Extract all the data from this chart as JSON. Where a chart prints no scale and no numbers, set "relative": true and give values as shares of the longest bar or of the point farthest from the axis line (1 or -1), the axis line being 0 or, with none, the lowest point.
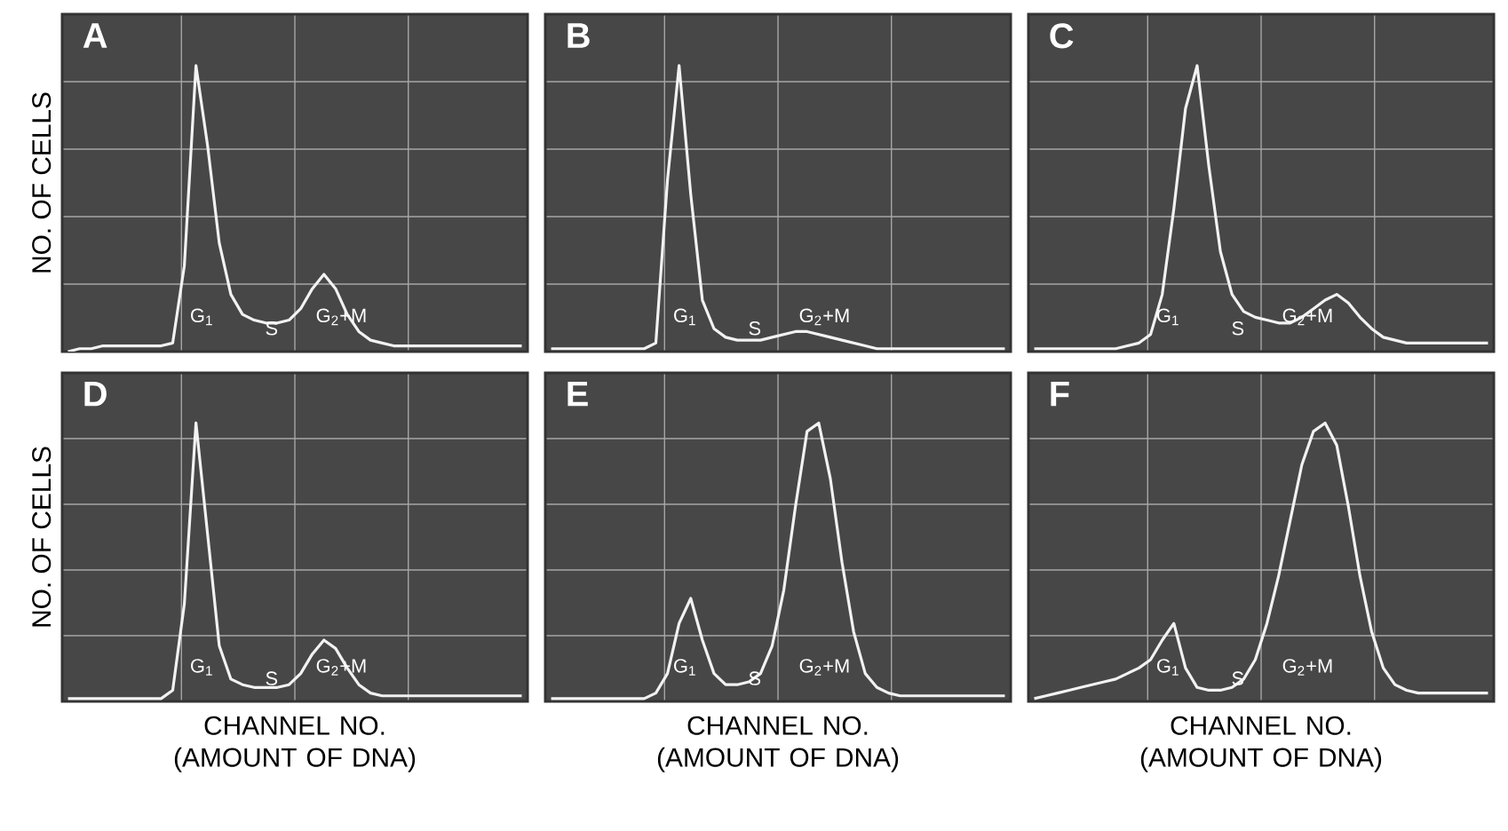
{
  "chart_data": [
    {
      "type": "line",
      "title": "A",
      "ylabel": "NO. OF CELLS",
      "relative": true,
      "grid": true,
      "categories": [
        null,
        null,
        null,
        null,
        null,
        null,
        null,
        null,
        null,
        null,
        null,
        null,
        null,
        null,
        null,
        null,
        null,
        null,
        null,
        null,
        null,
        null,
        null,
        null,
        null,
        null,
        null,
        null,
        null,
        null,
        null,
        null,
        null,
        null,
        null,
        null,
        null,
        null,
        null,
        null
      ],
      "series": [
        {
          "color": "#f2f2f2",
          "values": [
            0.0,
            0.01,
            0.01,
            0.02,
            0.02,
            0.02,
            0.02,
            0.02,
            0.02,
            0.03,
            0.3,
            1.0,
            0.72,
            0.38,
            0.2,
            0.13,
            0.11,
            0.1,
            0.1,
            0.11,
            0.15,
            0.22,
            0.27,
            0.22,
            0.13,
            0.07,
            0.04,
            0.03,
            0.02,
            0.02,
            0.02,
            0.02,
            0.02,
            0.02,
            0.02,
            0.02,
            0.02,
            0.02,
            0.02,
            0.02
          ]
        }
      ],
      "annotations": [
        "G$_{1}$",
        "S",
        "G$_{2}$+M"
      ]
    },
    {
      "type": "line",
      "title": "B",
      "relative": true,
      "grid": true,
      "categories": [
        null,
        null,
        null,
        null,
        null,
        null,
        null,
        null,
        null,
        null,
        null,
        null,
        null,
        null,
        null,
        null,
        null,
        null,
        null,
        null,
        null,
        null,
        null,
        null,
        null,
        null,
        null,
        null,
        null,
        null,
        null,
        null,
        null,
        null,
        null,
        null,
        null,
        null,
        null,
        null
      ],
      "series": [
        {
          "color": "#f2f2f2",
          "values": [
            0.01,
            0.01,
            0.01,
            0.01,
            0.01,
            0.01,
            0.01,
            0.01,
            0.01,
            0.03,
            0.6,
            1.0,
            0.55,
            0.18,
            0.08,
            0.05,
            0.04,
            0.04,
            0.04,
            0.05,
            0.06,
            0.07,
            0.07,
            0.06,
            0.05,
            0.04,
            0.03,
            0.02,
            0.01,
            0.01,
            0.01,
            0.01,
            0.01,
            0.01,
            0.01,
            0.01,
            0.01,
            0.01,
            0.01,
            0.01
          ]
        }
      ],
      "annotations": [
        "G$_{1}$",
        "S",
        "G$_{2}$+M"
      ]
    },
    {
      "type": "line",
      "title": "C",
      "relative": true,
      "grid": true,
      "categories": [
        null,
        null,
        null,
        null,
        null,
        null,
        null,
        null,
        null,
        null,
        null,
        null,
        null,
        null,
        null,
        null,
        null,
        null,
        null,
        null,
        null,
        null,
        null,
        null,
        null,
        null,
        null,
        null,
        null,
        null,
        null,
        null,
        null,
        null,
        null,
        null,
        null,
        null,
        null,
        null
      ],
      "series": [
        {
          "color": "#f2f2f2",
          "values": [
            0.01,
            0.01,
            0.01,
            0.01,
            0.01,
            0.01,
            0.01,
            0.01,
            0.02,
            0.03,
            0.06,
            0.2,
            0.5,
            0.85,
            1.0,
            0.65,
            0.35,
            0.2,
            0.14,
            0.12,
            0.11,
            0.1,
            0.1,
            0.12,
            0.15,
            0.18,
            0.2,
            0.17,
            0.12,
            0.08,
            0.05,
            0.04,
            0.03,
            0.03,
            0.03,
            0.03,
            0.03,
            0.03,
            0.03,
            0.03
          ]
        }
      ],
      "annotations": [
        "G$_{1}$",
        "S",
        "G$_{2}$+M"
      ]
    },
    {
      "type": "line",
      "title": "D",
      "ylabel": "NO. OF CELLS",
      "xlabel": "CHANNEL NO. (AMOUNT OF DNA)",
      "relative": true,
      "grid": true,
      "categories": [
        null,
        null,
        null,
        null,
        null,
        null,
        null,
        null,
        null,
        null,
        null,
        null,
        null,
        null,
        null,
        null,
        null,
        null,
        null,
        null,
        null,
        null,
        null,
        null,
        null,
        null,
        null,
        null,
        null,
        null,
        null,
        null,
        null,
        null,
        null,
        null,
        null,
        null,
        null,
        null
      ],
      "series": [
        {
          "color": "#f2f2f2",
          "values": [
            0.01,
            0.01,
            0.01,
            0.01,
            0.01,
            0.01,
            0.01,
            0.01,
            0.01,
            0.04,
            0.35,
            1.0,
            0.6,
            0.2,
            0.08,
            0.06,
            0.05,
            0.05,
            0.05,
            0.06,
            0.1,
            0.17,
            0.22,
            0.19,
            0.12,
            0.06,
            0.03,
            0.02,
            0.02,
            0.02,
            0.02,
            0.02,
            0.02,
            0.02,
            0.02,
            0.02,
            0.02,
            0.02,
            0.02,
            0.02
          ]
        }
      ],
      "annotations": [
        "G$_{1}$",
        "S",
        "G$_{2}$+M"
      ]
    },
    {
      "type": "line",
      "title": "E",
      "xlabel": "CHANNEL NO. (AMOUNT OF DNA)",
      "relative": true,
      "grid": true,
      "categories": [
        null,
        null,
        null,
        null,
        null,
        null,
        null,
        null,
        null,
        null,
        null,
        null,
        null,
        null,
        null,
        null,
        null,
        null,
        null,
        null,
        null,
        null,
        null,
        null,
        null,
        null,
        null,
        null,
        null,
        null,
        null,
        null,
        null,
        null,
        null,
        null,
        null,
        null,
        null,
        null
      ],
      "series": [
        {
          "color": "#f2f2f2",
          "values": [
            0.01,
            0.01,
            0.01,
            0.01,
            0.01,
            0.01,
            0.01,
            0.01,
            0.01,
            0.03,
            0.1,
            0.28,
            0.37,
            0.22,
            0.1,
            0.06,
            0.06,
            0.07,
            0.1,
            0.2,
            0.4,
            0.7,
            0.97,
            1.0,
            0.8,
            0.5,
            0.25,
            0.1,
            0.05,
            0.03,
            0.02,
            0.02,
            0.02,
            0.02,
            0.02,
            0.02,
            0.02,
            0.02,
            0.02,
            0.02
          ]
        }
      ],
      "annotations": [
        "G$_{1}$",
        "S",
        "G$_{2}$+M"
      ]
    },
    {
      "type": "line",
      "title": "F",
      "xlabel": "CHANNEL NO. (AMOUNT OF DNA)",
      "relative": true,
      "grid": true,
      "categories": [
        null,
        null,
        null,
        null,
        null,
        null,
        null,
        null,
        null,
        null,
        null,
        null,
        null,
        null,
        null,
        null,
        null,
        null,
        null,
        null,
        null,
        null,
        null,
        null,
        null,
        null,
        null,
        null,
        null,
        null,
        null,
        null,
        null,
        null,
        null,
        null,
        null,
        null,
        null,
        null
      ],
      "series": [
        {
          "color": "#f2f2f2",
          "values": [
            0.01,
            0.02,
            0.03,
            0.04,
            0.05,
            0.06,
            0.07,
            0.08,
            0.1,
            0.12,
            0.15,
            0.22,
            0.28,
            0.12,
            0.05,
            0.04,
            0.04,
            0.05,
            0.08,
            0.15,
            0.28,
            0.45,
            0.65,
            0.85,
            0.97,
            1.0,
            0.92,
            0.7,
            0.45,
            0.25,
            0.12,
            0.06,
            0.04,
            0.03,
            0.03,
            0.03,
            0.03,
            0.03,
            0.03,
            0.03
          ]
        }
      ],
      "annotations": [
        "G$_{1}$",
        "S",
        "G$_{2}$+M"
      ]
    }
  ]
}
